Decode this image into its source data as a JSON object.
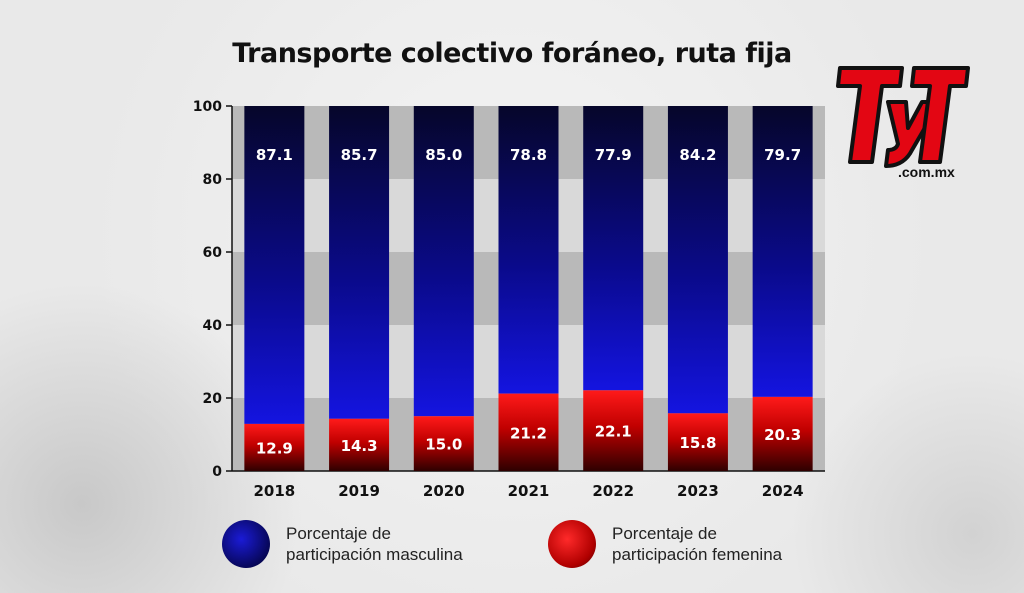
{
  "chart_data": {
    "type": "bar",
    "stacked": true,
    "title": "Transporte colectivo foráneo, ruta fija",
    "categories": [
      "2018",
      "2019",
      "2020",
      "2021",
      "2022",
      "2023",
      "2024"
    ],
    "series": [
      {
        "name": "Porcentaje de participación femenina",
        "values": [
          12.9,
          14.3,
          15.0,
          21.2,
          22.1,
          15.8,
          20.3
        ],
        "color": "#e00000"
      },
      {
        "name": "Porcentaje de participación masculina",
        "values": [
          87.1,
          85.7,
          85.0,
          78.8,
          77.9,
          84.2,
          79.7
        ],
        "color": "#0a0a8a"
      }
    ],
    "ylim": [
      0,
      100
    ],
    "yticks": [
      0,
      20,
      40,
      60,
      80,
      100
    ],
    "xlabel": "",
    "ylabel": "",
    "legend_position": "bottom"
  },
  "legend": {
    "male": {
      "line1": "Porcentaje de",
      "line2": "participación masculina"
    },
    "female": {
      "line1": "Porcentaje de",
      "line2": "participación femenina"
    }
  },
  "logo": {
    "mark": "TyT",
    "domain": ".com.mx"
  },
  "colors": {
    "male_top": "#06062a",
    "male_bottom": "#1010d8",
    "female_top": "#ff1a1a",
    "female_bottom": "#3a0000",
    "band_dark": "#b9b9b9",
    "band_light": "#d9d9d9"
  }
}
